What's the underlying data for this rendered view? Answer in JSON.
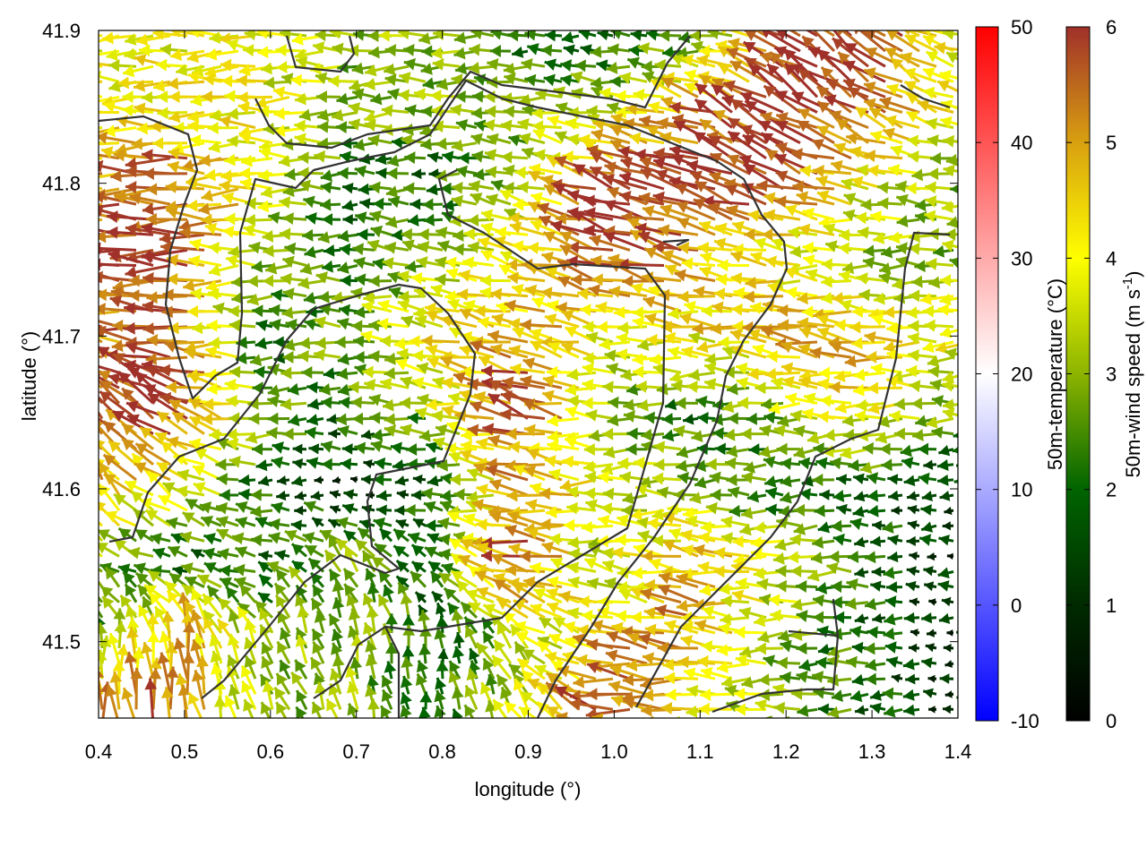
{
  "chart_data": {
    "type": "vector-field",
    "xlabel": "longitude (°)",
    "ylabel": "latitude (°)",
    "xlim": [
      0.4,
      1.4
    ],
    "ylim": [
      41.45,
      41.9
    ],
    "xticks": [
      "0.4",
      "0.5",
      "0.6",
      "0.7",
      "0.8",
      "0.9",
      "1.0",
      "1.1",
      "1.2",
      "1.3",
      "1.4"
    ],
    "xtick_values": [
      0.4,
      0.5,
      0.6,
      0.7,
      0.8,
      0.9,
      1.0,
      1.1,
      1.2,
      1.3,
      1.4
    ],
    "yticks": [
      "41.5",
      "41.6",
      "41.7",
      "41.8",
      "41.9"
    ],
    "ytick_values": [
      41.5,
      41.6,
      41.7,
      41.8,
      41.9
    ],
    "grid": false,
    "temperature_colorbar": {
      "label": "50m-temperature (°C)",
      "range": [
        -10,
        50
      ],
      "ticks": [
        "-10",
        "0",
        "10",
        "20",
        "30",
        "40",
        "50"
      ],
      "tick_values": [
        -10,
        0,
        10,
        20,
        30,
        40,
        50
      ],
      "colors": [
        "#0000ff",
        "#ffffff",
        "#ff0000"
      ]
    },
    "wind_colorbar": {
      "label_prefix": "50m-wind speed (m s",
      "label_sup": "-1",
      "label_suffix": ")",
      "range": [
        0,
        6
      ],
      "ticks": [
        "0",
        "1",
        "2",
        "3",
        "4",
        "5",
        "6"
      ],
      "tick_values": [
        0,
        1,
        2,
        3,
        4,
        5,
        6
      ],
      "colors": [
        "#000000",
        "#002a00",
        "#006400",
        "#8cb400",
        "#ffff00",
        "#d8a010",
        "#a0302a"
      ]
    },
    "grid_lon": [
      0.4,
      0.5,
      0.6,
      0.7,
      0.8,
      0.9,
      1.0,
      1.1,
      1.2,
      1.3,
      1.4
    ],
    "grid_lat": [
      41.9,
      41.85,
      41.8,
      41.75,
      41.7,
      41.65,
      41.6,
      41.55,
      41.5,
      41.45
    ],
    "wind_speed": [
      [
        4,
        4,
        4,
        3,
        3,
        2,
        2,
        2,
        6,
        6,
        4
      ],
      [
        4,
        4,
        4,
        3,
        3,
        3,
        3,
        5,
        6,
        6,
        4
      ],
      [
        5,
        6,
        4,
        2,
        2,
        3,
        6,
        6,
        6,
        4,
        3
      ],
      [
        6,
        6,
        3,
        2,
        3,
        4,
        6,
        5,
        4,
        3,
        3
      ],
      [
        5,
        6,
        2,
        3,
        4,
        5,
        4,
        4,
        5,
        5,
        4
      ],
      [
        6,
        6,
        3,
        2,
        3,
        6,
        3,
        2,
        3,
        4,
        3
      ],
      [
        5,
        4,
        2,
        1,
        2,
        5,
        4,
        3,
        2,
        2,
        1
      ],
      [
        3,
        2,
        2,
        3,
        2,
        6,
        3,
        5,
        4,
        2,
        1
      ],
      [
        2,
        5,
        3,
        3,
        2,
        3,
        5,
        5,
        3,
        2,
        1
      ],
      [
        6,
        5,
        3,
        3,
        2,
        4,
        6,
        4,
        3,
        2,
        1
      ]
    ],
    "wind_direction_deg": [
      [
        180,
        180,
        175,
        180,
        180,
        180,
        180,
        180,
        150,
        140,
        160
      ],
      [
        180,
        180,
        180,
        180,
        180,
        180,
        170,
        160,
        150,
        145,
        160
      ],
      [
        180,
        180,
        180,
        180,
        180,
        170,
        160,
        160,
        160,
        170,
        180
      ],
      [
        180,
        180,
        180,
        180,
        170,
        165,
        165,
        165,
        175,
        180,
        180
      ],
      [
        170,
        180,
        180,
        175,
        170,
        165,
        170,
        180,
        170,
        170,
        180
      ],
      [
        130,
        150,
        180,
        180,
        175,
        160,
        180,
        180,
        180,
        180,
        180
      ],
      [
        120,
        150,
        180,
        180,
        180,
        170,
        180,
        180,
        180,
        180,
        180
      ],
      [
        150,
        170,
        160,
        120,
        150,
        170,
        170,
        170,
        180,
        180,
        180
      ],
      [
        95,
        100,
        120,
        100,
        100,
        140,
        170,
        175,
        180,
        180,
        180
      ],
      [
        95,
        100,
        110,
        110,
        100,
        120,
        175,
        180,
        180,
        180,
        180
      ]
    ]
  }
}
